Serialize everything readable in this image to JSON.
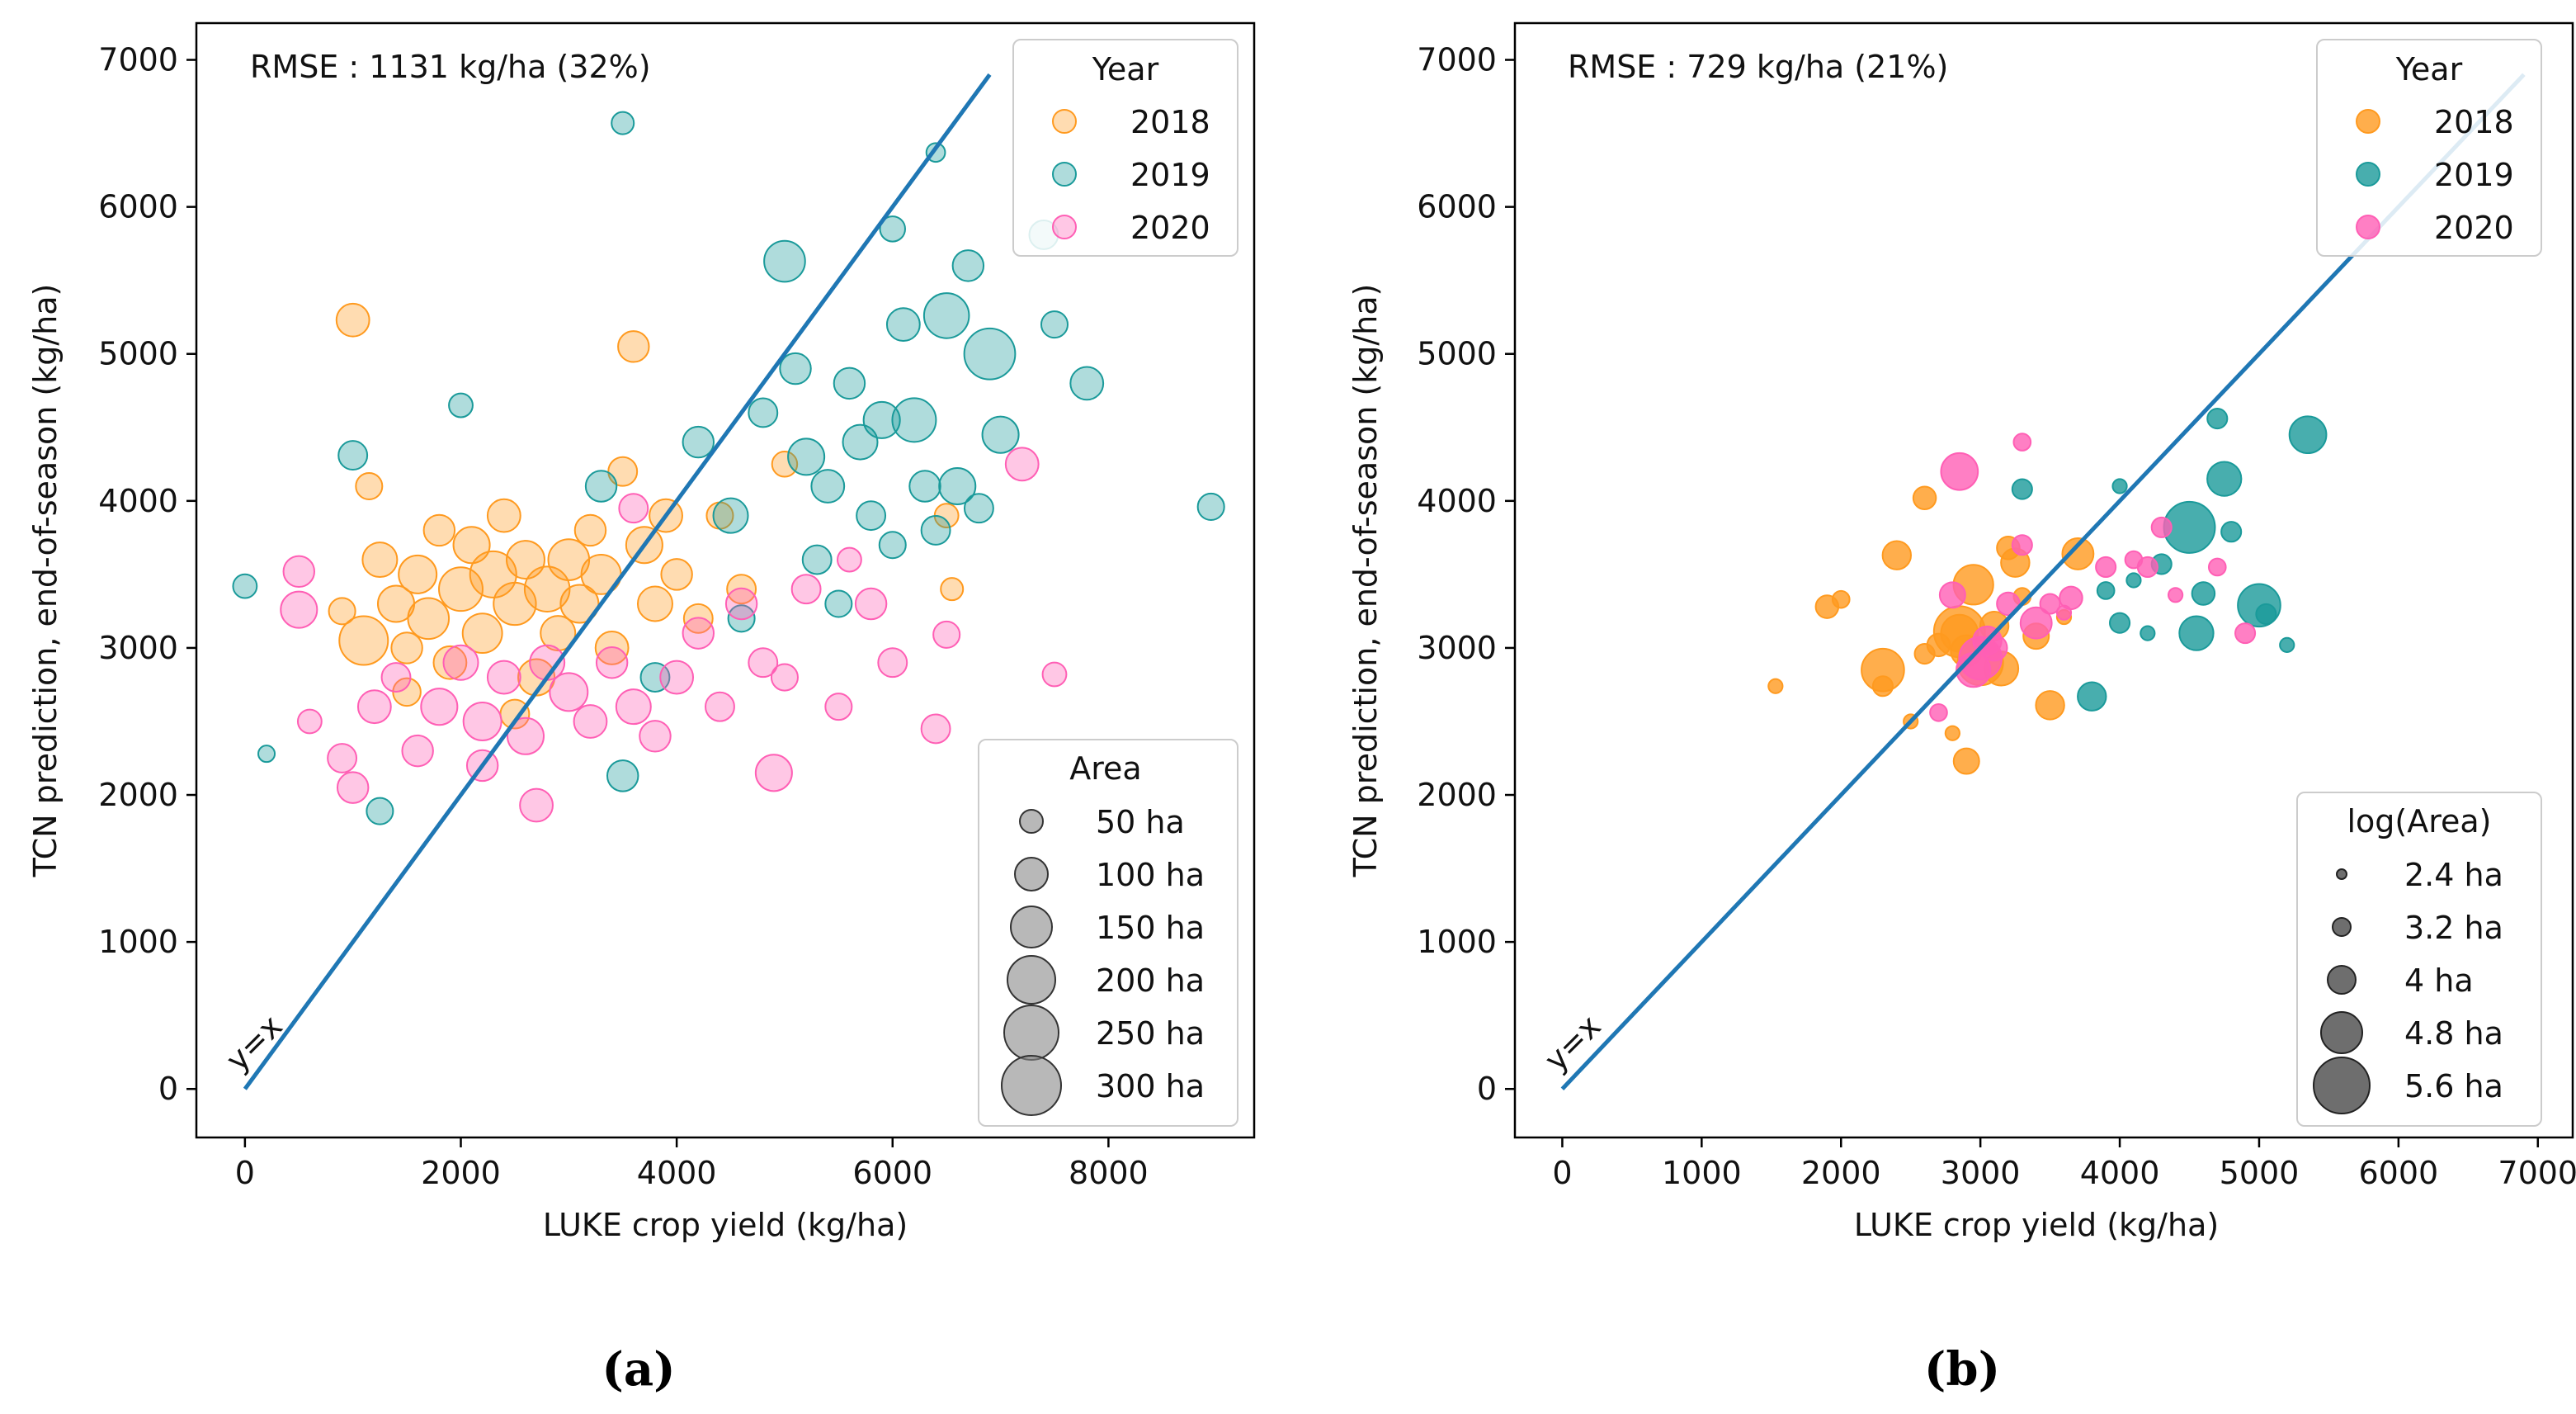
{
  "charts": [
    {
      "panel_label": "(a)",
      "type": "scatter",
      "annotation": "RMSE : 1131 kg/ha (32%)",
      "xlabel": "LUKE crop yield (kg/ha)",
      "ylabel": "TCN prediction, end-of-season (kg/ha)",
      "xlim": [
        -450,
        9350
      ],
      "ylim": [
        -330,
        7250
      ],
      "xticks": [
        0,
        2000,
        4000,
        6000,
        8000
      ],
      "yticks": [
        0,
        1000,
        2000,
        3000,
        4000,
        5000,
        6000,
        7000
      ],
      "identity_label": "y=x",
      "identity_line": {
        "x": [
          0,
          6900
        ],
        "y": [
          0,
          6900
        ]
      },
      "legend_year": {
        "title": "Year",
        "entries": [
          "2018",
          "2019",
          "2020"
        ]
      },
      "legend_size": {
        "title": "Area",
        "entries": [
          "50 ha",
          "100 ha",
          "150 ha",
          "200 ha",
          "250 ha",
          "300 ha"
        ],
        "area_values": [
          50,
          100,
          150,
          200,
          250,
          300
        ]
      },
      "marker_alpha": 0.35,
      "series": [
        {
          "name": "2018",
          "color": "#ff9a1f",
          "points": [
            [
              1000,
              5230,
              70
            ],
            [
              1150,
              4100,
              40
            ],
            [
              1250,
              3600,
              80
            ],
            [
              1400,
              3300,
              90
            ],
            [
              1500,
              3000,
              60
            ],
            [
              1600,
              3500,
              100
            ],
            [
              1700,
              3200,
              120
            ],
            [
              1800,
              3800,
              60
            ],
            [
              1900,
              2900,
              70
            ],
            [
              2000,
              3400,
              140
            ],
            [
              2100,
              3700,
              90
            ],
            [
              2200,
              3100,
              110
            ],
            [
              2300,
              3500,
              160
            ],
            [
              2400,
              3900,
              70
            ],
            [
              2500,
              3300,
              130
            ],
            [
              2600,
              3600,
              100
            ],
            [
              2700,
              2800,
              90
            ],
            [
              2800,
              3400,
              150
            ],
            [
              2900,
              3100,
              80
            ],
            [
              3000,
              3600,
              120
            ],
            [
              3100,
              3300,
              100
            ],
            [
              3200,
              3800,
              60
            ],
            [
              3300,
              3500,
              110
            ],
            [
              3400,
              3000,
              70
            ],
            [
              3500,
              4200,
              50
            ],
            [
              3600,
              5050,
              60
            ],
            [
              3700,
              3700,
              90
            ],
            [
              3800,
              3300,
              80
            ],
            [
              3900,
              3900,
              70
            ],
            [
              4000,
              3500,
              60
            ],
            [
              4200,
              3200,
              50
            ],
            [
              4400,
              3900,
              40
            ],
            [
              4600,
              3400,
              50
            ],
            [
              5000,
              4250,
              35
            ],
            [
              1100,
              3050,
              180
            ],
            [
              2500,
              2550,
              50
            ],
            [
              1500,
              2700,
              45
            ],
            [
              900,
              3250,
              40
            ],
            [
              6500,
              3900,
              30
            ],
            [
              6550,
              3400,
              25
            ]
          ]
        },
        {
          "name": "2019",
          "color": "#1a9a9a",
          "points": [
            [
              0,
              3420,
              30
            ],
            [
              200,
              2280,
              10
            ],
            [
              1000,
              4310,
              50
            ],
            [
              1250,
              1890,
              40
            ],
            [
              2000,
              4650,
              30
            ],
            [
              3500,
              6570,
              25
            ],
            [
              3500,
              2130,
              60
            ],
            [
              4500,
              3900,
              80
            ],
            [
              4800,
              4600,
              50
            ],
            [
              5000,
              5630,
              120
            ],
            [
              5100,
              4900,
              60
            ],
            [
              5200,
              4300,
              90
            ],
            [
              5300,
              3600,
              50
            ],
            [
              5400,
              4100,
              70
            ],
            [
              5500,
              3300,
              40
            ],
            [
              5600,
              4800,
              60
            ],
            [
              5700,
              4400,
              80
            ],
            [
              5800,
              3900,
              50
            ],
            [
              5900,
              4550,
              90
            ],
            [
              6000,
              3700,
              40
            ],
            [
              6100,
              5200,
              70
            ],
            [
              6200,
              4550,
              140
            ],
            [
              6300,
              4100,
              60
            ],
            [
              6400,
              3800,
              50
            ],
            [
              6500,
              5260,
              150
            ],
            [
              6600,
              4100,
              90
            ],
            [
              6700,
              5600,
              60
            ],
            [
              6800,
              3950,
              50
            ],
            [
              6900,
              5000,
              200
            ],
            [
              7000,
              4450,
              90
            ],
            [
              7400,
              5810,
              50
            ],
            [
              7500,
              5200,
              40
            ],
            [
              7800,
              4800,
              70
            ],
            [
              8950,
              3960,
              40
            ],
            [
              4200,
              4400,
              60
            ],
            [
              4600,
              3200,
              40
            ],
            [
              3800,
              2800,
              50
            ],
            [
              3300,
              4100,
              60
            ],
            [
              6400,
              6370,
              15
            ],
            [
              6000,
              5850,
              35
            ]
          ]
        },
        {
          "name": "2020",
          "color": "#ff5fb5",
          "points": [
            [
              500,
              3520,
              60
            ],
            [
              500,
              3260,
              90
            ],
            [
              600,
              2500,
              30
            ],
            [
              900,
              2250,
              50
            ],
            [
              1000,
              2050,
              60
            ],
            [
              1200,
              2600,
              70
            ],
            [
              1400,
              2800,
              50
            ],
            [
              1600,
              2300,
              60
            ],
            [
              1800,
              2600,
              90
            ],
            [
              2000,
              2900,
              80
            ],
            [
              2200,
              2500,
              100
            ],
            [
              2400,
              2800,
              70
            ],
            [
              2600,
              2400,
              90
            ],
            [
              2700,
              1930,
              70
            ],
            [
              2800,
              2900,
              80
            ],
            [
              3000,
              2700,
              100
            ],
            [
              3200,
              2500,
              70
            ],
            [
              3400,
              2900,
              60
            ],
            [
              3600,
              2600,
              80
            ],
            [
              3800,
              2400,
              60
            ],
            [
              4000,
              2800,
              70
            ],
            [
              4200,
              3100,
              60
            ],
            [
              4400,
              2600,
              50
            ],
            [
              4600,
              3300,
              60
            ],
            [
              4800,
              2900,
              50
            ],
            [
              5000,
              2800,
              40
            ],
            [
              5200,
              3400,
              50
            ],
            [
              5500,
              2600,
              40
            ],
            [
              5800,
              3300,
              60
            ],
            [
              6000,
              2900,
              50
            ],
            [
              6400,
              2450,
              50
            ],
            [
              6500,
              3090,
              40
            ],
            [
              7200,
              4250,
              70
            ],
            [
              7500,
              2820,
              30
            ],
            [
              3600,
              3950,
              50
            ],
            [
              4900,
              2150,
              90
            ],
            [
              5600,
              3600,
              30
            ],
            [
              2200,
              2200,
              60
            ]
          ]
        }
      ]
    },
    {
      "panel_label": "(b)",
      "type": "scatter",
      "annotation": "RMSE : 729 kg/ha (21%)",
      "xlabel": "LUKE crop yield (kg/ha)",
      "ylabel": "TCN prediction, end-of-season (kg/ha)",
      "xlim": [
        -340,
        7250
      ],
      "ylim": [
        -330,
        7250
      ],
      "xticks": [
        0,
        1000,
        2000,
        3000,
        4000,
        5000,
        6000,
        7000
      ],
      "yticks": [
        0,
        1000,
        2000,
        3000,
        4000,
        5000,
        6000,
        7000
      ],
      "identity_label": "y=x",
      "identity_line": {
        "x": [
          0,
          6900
        ],
        "y": [
          0,
          6900
        ]
      },
      "legend_year": {
        "title": "Year",
        "entries": [
          "2018",
          "2019",
          "2020"
        ]
      },
      "legend_size": {
        "title": "log(Area)",
        "entries": [
          "2.4 ha",
          "3.2 ha",
          "4 ha",
          "4.8 ha",
          "5.6 ha"
        ],
        "area_values": [
          2.4,
          3.2,
          4.0,
          4.8,
          5.6
        ]
      },
      "marker_alpha": 0.8,
      "series": [
        {
          "name": "2018",
          "color": "#ff9a1f",
          "points": [
            [
              1530,
              2740,
              3.0
            ],
            [
              1900,
              3280,
              3.6
            ],
            [
              2000,
              3330,
              3.2
            ],
            [
              2300,
              2850,
              5.0
            ],
            [
              2300,
              2740,
              3.4
            ],
            [
              2400,
              3630,
              4.0
            ],
            [
              2500,
              2500,
              3.0
            ],
            [
              2600,
              2960,
              3.4
            ],
            [
              2700,
              3020,
              3.6
            ],
            [
              2800,
              2420,
              3.0
            ],
            [
              2850,
              3110,
              5.6
            ],
            [
              2900,
              2980,
              4.2
            ],
            [
              2900,
              2230,
              3.8
            ],
            [
              2950,
              3430,
              4.8
            ],
            [
              3000,
              2900,
              5.2
            ],
            [
              3100,
              3150,
              4.0
            ],
            [
              3150,
              2860,
              4.4
            ],
            [
              3200,
              3680,
              3.6
            ],
            [
              3250,
              3580,
              4.0
            ],
            [
              3300,
              3350,
              3.2
            ],
            [
              3400,
              3080,
              3.8
            ],
            [
              3500,
              2610,
              4.0
            ],
            [
              3600,
              3210,
              3.0
            ],
            [
              3700,
              3640,
              4.2
            ],
            [
              2600,
              4020,
              3.6
            ],
            [
              2850,
              3100,
              4.6
            ]
          ]
        },
        {
          "name": "2019",
          "color": "#1a9a9a",
          "points": [
            [
              3300,
              4080,
              3.4
            ],
            [
              3800,
              2670,
              4.0
            ],
            [
              3900,
              3390,
              3.2
            ],
            [
              4000,
              3170,
              3.4
            ],
            [
              4100,
              3460,
              3.0
            ],
            [
              4200,
              3100,
              3.0
            ],
            [
              4300,
              3570,
              3.4
            ],
            [
              4500,
              3820,
              5.6
            ],
            [
              4550,
              3100,
              4.4
            ],
            [
              4600,
              3370,
              3.6
            ],
            [
              4700,
              4560,
              3.4
            ],
            [
              4750,
              4150,
              4.4
            ],
            [
              4800,
              3790,
              3.4
            ],
            [
              5000,
              3290,
              5.0
            ],
            [
              5050,
              3230,
              3.4
            ],
            [
              5200,
              3020,
              3.0
            ],
            [
              5350,
              4450,
              4.6
            ],
            [
              4000,
              4100,
              3.0
            ]
          ]
        },
        {
          "name": "2020",
          "color": "#ff5fb5",
          "points": [
            [
              2700,
              2560,
              3.2
            ],
            [
              2800,
              3360,
              3.8
            ],
            [
              2850,
              4200,
              4.6
            ],
            [
              2950,
              2850,
              4.4
            ],
            [
              3050,
              3050,
              4.0
            ],
            [
              3100,
              3000,
              3.8
            ],
            [
              3200,
              3300,
              3.6
            ],
            [
              3300,
              3700,
              3.4
            ],
            [
              3300,
              4400,
              3.2
            ],
            [
              3400,
              3170,
              4.2
            ],
            [
              3500,
              3300,
              3.4
            ],
            [
              3600,
              3240,
              3.0
            ],
            [
              3650,
              3340,
              3.6
            ],
            [
              3900,
              3550,
              3.4
            ],
            [
              4100,
              3600,
              3.2
            ],
            [
              4200,
              3550,
              3.4
            ],
            [
              4300,
              3820,
              3.4
            ],
            [
              4400,
              3360,
              3.0
            ],
            [
              4700,
              3550,
              3.2
            ],
            [
              4900,
              3100,
              3.4
            ],
            [
              3000,
              2930,
              5.0
            ]
          ]
        }
      ]
    }
  ]
}
